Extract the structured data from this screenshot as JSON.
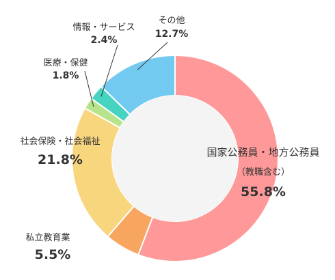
{
  "chart_data": {
    "type": "pie",
    "donut": true,
    "start_angle_deg": 0,
    "direction": "clockwise",
    "legend": "none",
    "slices": [
      {
        "label": "国家公務員・地方公務員",
        "sublabel": "（教職含む）",
        "value": 55.8,
        "value_label": "55.8%",
        "color": "#FF9999"
      },
      {
        "label": "私立教育業",
        "value": 5.5,
        "value_label": "5.5%",
        "color": "#F7A55F"
      },
      {
        "label": "社会保険・社会福祉",
        "value": 21.8,
        "value_label": "21.8%",
        "color": "#F8D67E"
      },
      {
        "label": "医療・保健",
        "value": 1.8,
        "value_label": "1.8%",
        "color": "#B7E48A"
      },
      {
        "label": "情報・サービス",
        "value": 2.4,
        "value_label": "2.4%",
        "color": "#46D3BF"
      },
      {
        "label": "その他",
        "value": 12.7,
        "value_label": "12.7%",
        "color": "#72CAF0"
      }
    ],
    "center_fill": "#F4F4F4"
  }
}
